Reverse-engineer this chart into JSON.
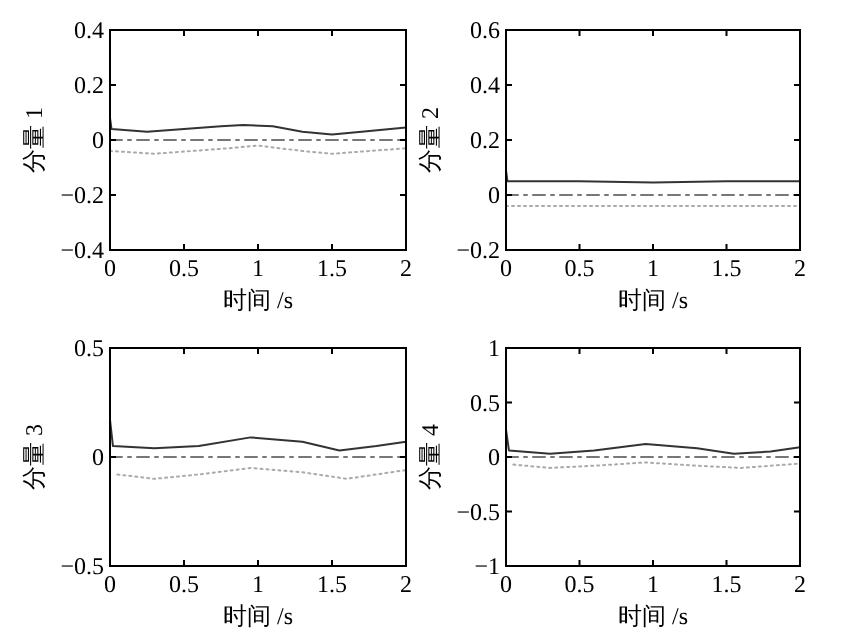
{
  "chart_data": [
    {
      "type": "line",
      "xlabel": "时间 /s",
      "ylabel": "分量 1",
      "xlim": [
        0,
        2
      ],
      "ylim": [
        -0.4,
        0.4
      ],
      "xticks": [
        0,
        0.5,
        1,
        1.5,
        2
      ],
      "yticks": [
        -0.4,
        -0.2,
        0,
        0.2,
        0.4
      ],
      "grid": false,
      "series": [
        {
          "color": "#333333",
          "line_style": "solid",
          "x": [
            0,
            0.01,
            0.25,
            0.5,
            0.75,
            0.9,
            1.1,
            1.3,
            1.5,
            1.7,
            2
          ],
          "values": [
            0.08,
            0.04,
            0.03,
            0.04,
            0.05,
            0.055,
            0.05,
            0.03,
            0.02,
            0.03,
            0.045
          ]
        },
        {
          "color": "#777777",
          "line_style": "dashed",
          "x": [
            0,
            2
          ],
          "values": [
            0,
            0
          ]
        },
        {
          "color": "#aaaaaa",
          "line_style": "dotted",
          "x": [
            0,
            0.3,
            0.8,
            1.0,
            1.3,
            1.5,
            2
          ],
          "values": [
            -0.04,
            -0.05,
            -0.03,
            -0.02,
            -0.04,
            -0.05,
            -0.03
          ]
        }
      ]
    },
    {
      "type": "line",
      "xlabel": "时间 /s",
      "ylabel": "分量 2",
      "xlim": [
        0,
        2
      ],
      "ylim": [
        -0.2,
        0.6
      ],
      "xticks": [
        0,
        0.5,
        1,
        1.5,
        2
      ],
      "yticks": [
        -0.2,
        0,
        0.2,
        0.4,
        0.6
      ],
      "grid": false,
      "series": [
        {
          "color": "#333333",
          "line_style": "solid",
          "x": [
            0,
            0.01,
            0.5,
            1,
            1.5,
            2
          ],
          "values": [
            0.09,
            0.05,
            0.05,
            0.045,
            0.05,
            0.05
          ]
        },
        {
          "color": "#777777",
          "line_style": "dashed",
          "x": [
            0,
            2
          ],
          "values": [
            0,
            0
          ]
        },
        {
          "color": "#aaaaaa",
          "line_style": "dotted",
          "x": [
            0,
            1,
            2
          ],
          "values": [
            -0.04,
            -0.04,
            -0.04
          ]
        }
      ]
    },
    {
      "type": "line",
      "xlabel": "时间 /s",
      "ylabel": "分量 3",
      "xlim": [
        0,
        2
      ],
      "ylim": [
        -0.5,
        0.5
      ],
      "xticks": [
        0,
        0.5,
        1,
        1.5,
        2
      ],
      "yticks": [
        -0.5,
        0,
        0.5
      ],
      "grid": false,
      "series": [
        {
          "color": "#333333",
          "line_style": "solid",
          "x": [
            0,
            0.02,
            0.3,
            0.6,
            0.95,
            1.3,
            1.55,
            1.8,
            2
          ],
          "values": [
            0.17,
            0.05,
            0.04,
            0.05,
            0.09,
            0.07,
            0.03,
            0.05,
            0.07
          ]
        },
        {
          "color": "#777777",
          "line_style": "dashed",
          "x": [
            0,
            2
          ],
          "values": [
            0,
            0
          ]
        },
        {
          "color": "#aaaaaa",
          "line_style": "dotted",
          "x": [
            0.05,
            0.3,
            0.6,
            0.95,
            1.3,
            1.6,
            2
          ],
          "values": [
            -0.08,
            -0.1,
            -0.08,
            -0.05,
            -0.07,
            -0.1,
            -0.06
          ]
        }
      ]
    },
    {
      "type": "line",
      "xlabel": "时间 /s",
      "ylabel": "分量 4",
      "xlim": [
        0,
        2
      ],
      "ylim": [
        -1,
        1
      ],
      "xticks": [
        0,
        0.5,
        1,
        1.5,
        2
      ],
      "yticks": [
        -1,
        -0.5,
        0,
        0.5,
        1
      ],
      "grid": false,
      "series": [
        {
          "color": "#333333",
          "line_style": "solid",
          "x": [
            0,
            0.02,
            0.3,
            0.6,
            0.95,
            1.3,
            1.55,
            1.8,
            2
          ],
          "values": [
            0.25,
            0.06,
            0.03,
            0.06,
            0.12,
            0.08,
            0.03,
            0.05,
            0.09
          ]
        },
        {
          "color": "#777777",
          "line_style": "dashed",
          "x": [
            0,
            2
          ],
          "values": [
            0,
            0
          ]
        },
        {
          "color": "#aaaaaa",
          "line_style": "dotted",
          "x": [
            0.05,
            0.3,
            0.6,
            0.95,
            1.3,
            1.6,
            2
          ],
          "values": [
            -0.07,
            -0.1,
            -0.08,
            -0.05,
            -0.08,
            -0.1,
            -0.06
          ]
        }
      ]
    }
  ]
}
